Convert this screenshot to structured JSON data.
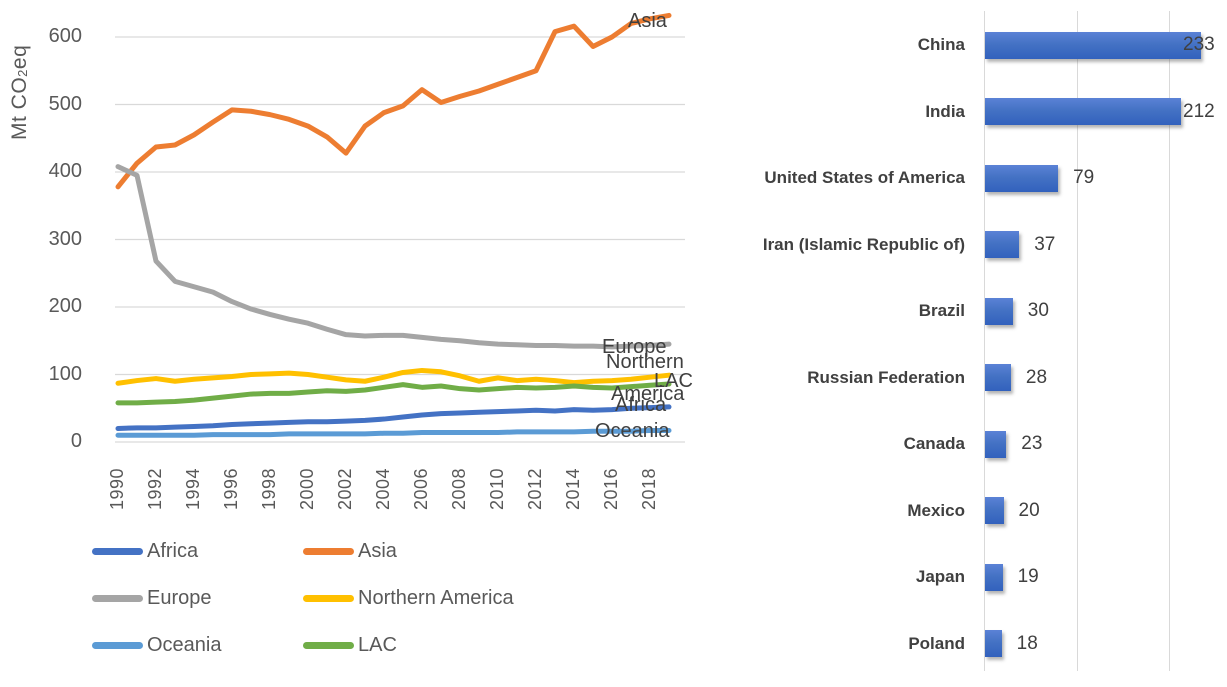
{
  "colors": {
    "text_gray": "#595959",
    "label_dark_gray": "#404040",
    "gridline": "#D9D9D9",
    "bar_blue": "#4472C4"
  },
  "chart_data": [
    {
      "type": "line",
      "title": "",
      "xlabel": "",
      "ylabel": {
        "pre": "Mt CO",
        "sub": "2",
        "post": "eq"
      },
      "grid": true,
      "ylim": [
        0,
        650
      ],
      "y_ticks": [
        0,
        100,
        200,
        300,
        400,
        500,
        600
      ],
      "x": [
        1990,
        1991,
        1992,
        1993,
        1994,
        1995,
        1996,
        1997,
        1998,
        1999,
        2000,
        2001,
        2002,
        2003,
        2004,
        2005,
        2006,
        2007,
        2008,
        2009,
        2010,
        2011,
        2012,
        2013,
        2014,
        2015,
        2016,
        2017,
        2018,
        2019
      ],
      "x_tick_labels": [
        "1990",
        "1992",
        "1994",
        "1996",
        "1998",
        "2000",
        "2002",
        "2004",
        "2006",
        "2008",
        "2010",
        "2012",
        "2014",
        "2016",
        "2018"
      ],
      "series": [
        {
          "name": "Africa",
          "color": "#4472C4",
          "values": [
            20,
            21,
            21,
            22,
            23,
            24,
            26,
            27,
            28,
            29,
            30,
            30,
            31,
            32,
            34,
            37,
            40,
            42,
            43,
            44,
            45,
            46,
            47,
            46,
            48,
            47,
            48,
            50,
            51,
            52
          ]
        },
        {
          "name": "Asia",
          "color": "#ED7D31",
          "values": [
            378,
            413,
            437,
            440,
            455,
            474,
            492,
            490,
            485,
            478,
            468,
            452,
            428,
            468,
            488,
            498,
            522,
            503,
            512,
            520,
            530,
            540,
            550,
            608,
            616,
            586,
            600,
            620,
            627,
            632
          ]
        },
        {
          "name": "Europe",
          "color": "#A5A5A5",
          "values": [
            408,
            395,
            268,
            238,
            230,
            222,
            208,
            197,
            189,
            182,
            176,
            167,
            159,
            157,
            158,
            158,
            155,
            152,
            150,
            147,
            145,
            144,
            143,
            143,
            142,
            142,
            141,
            142,
            143,
            145
          ]
        },
        {
          "name": "Northern America",
          "color": "#FFC000",
          "values": [
            87,
            91,
            94,
            90,
            93,
            95,
            97,
            100,
            101,
            102,
            100,
            96,
            92,
            90,
            96,
            103,
            106,
            104,
            98,
            90,
            95,
            91,
            93,
            91,
            88,
            90,
            91,
            93,
            96,
            99
          ]
        },
        {
          "name": "Oceania",
          "color": "#5B9BD5",
          "values": [
            10,
            10,
            10,
            10,
            10,
            11,
            11,
            11,
            11,
            12,
            12,
            12,
            12,
            12,
            13,
            13,
            14,
            14,
            14,
            14,
            14,
            15,
            15,
            15,
            15,
            16,
            16,
            16,
            17,
            17
          ]
        },
        {
          "name": "LAC",
          "color": "#70AD47",
          "values": [
            58,
            58,
            59,
            60,
            62,
            65,
            68,
            71,
            72,
            72,
            74,
            76,
            75,
            77,
            81,
            85,
            81,
            83,
            79,
            77,
            79,
            81,
            80,
            81,
            83,
            81,
            80,
            82,
            84,
            86
          ]
        }
      ],
      "end_labels": [
        "Asia",
        "Europe",
        "Northern",
        "America",
        "LAC",
        "Africa",
        "Oceania"
      ],
      "legend_position": "bottom",
      "legend": [
        "Africa",
        "Asia",
        "Europe",
        "Northern America",
        "Oceania",
        "LAC"
      ]
    },
    {
      "type": "bar",
      "orientation": "horizontal",
      "title": "",
      "categories": [
        "China",
        "India",
        "United States of America",
        "Iran (Islamic Republic of)",
        "Brazil",
        "Russian Federation",
        "Canada",
        "Mexico",
        "Japan",
        "Poland"
      ],
      "values": [
        233,
        212,
        79,
        37,
        30,
        28,
        23,
        20,
        19,
        18
      ],
      "bar_color": "#4472C4",
      "xlim": [
        0,
        250
      ],
      "x_gridlines": [
        0,
        100,
        200
      ],
      "grid": true,
      "data_labels": true,
      "legend_position": "none"
    }
  ]
}
